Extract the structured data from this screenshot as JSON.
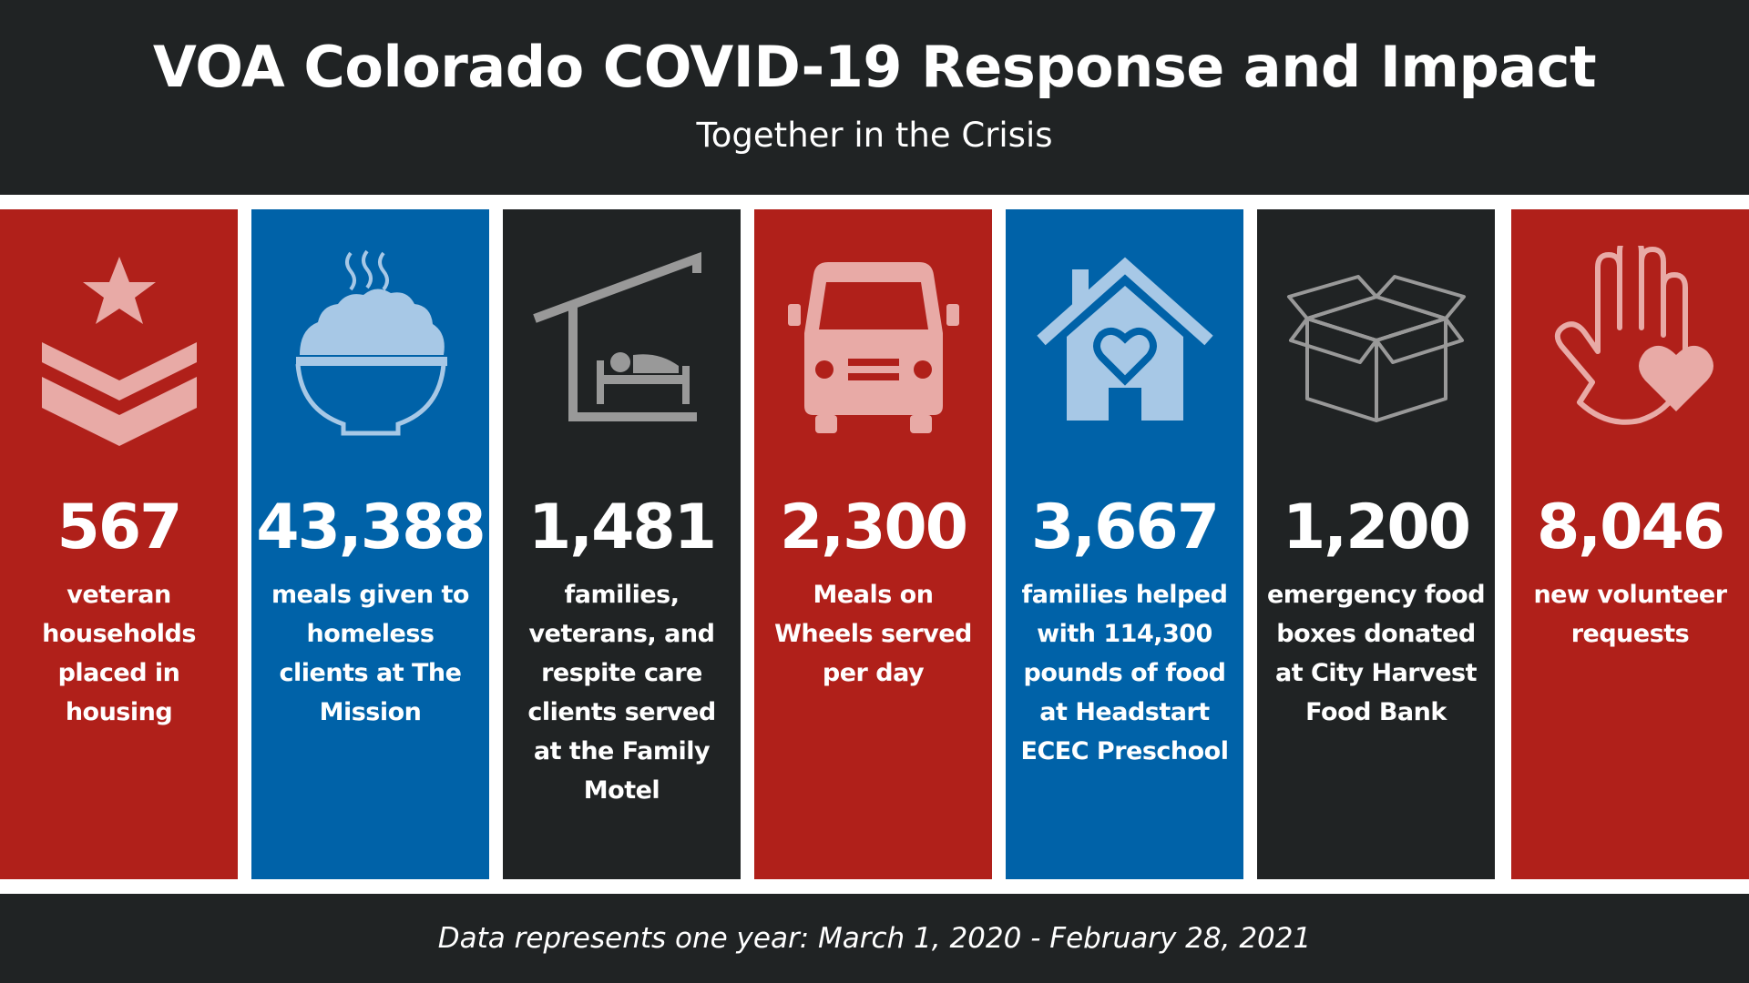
{
  "header": {
    "title": "VOA Colorado COVID-19 Response and Impact",
    "subtitle": "Together in the Crisis"
  },
  "colors": {
    "red": "#b0201a",
    "blue": "#0062a8",
    "dark": "#202324",
    "icon_red": "#e8aaa6",
    "icon_blue": "#a7c8e6",
    "icon_gray": "#999999"
  },
  "panels": [
    {
      "icon": "chevron-star-icon",
      "stat": "567",
      "desc": "veteran households placed in housing"
    },
    {
      "icon": "rice-bowl-icon",
      "stat": "43,388",
      "desc": "meals given to homeless clients at The Mission"
    },
    {
      "icon": "motel-bed-icon",
      "stat": "1,481",
      "desc": "families, veterans, and respite care clients served at the Family Motel"
    },
    {
      "icon": "van-icon",
      "stat": "2,300",
      "desc": "Meals on Wheels served per day"
    },
    {
      "icon": "house-heart-icon",
      "stat": "3,667",
      "desc": "families helped with 114,300 pounds of food at Headstart ECEC Preschool"
    },
    {
      "icon": "box-icon",
      "stat": "1,200",
      "desc": "emergency food boxes donated at City Harvest Food Bank"
    },
    {
      "icon": "hand-heart-icon",
      "stat": "8,046",
      "desc": "new volunteer requests"
    }
  ],
  "footer": {
    "text": "Data represents one year: March 1, 2020 - February 28, 2021"
  }
}
